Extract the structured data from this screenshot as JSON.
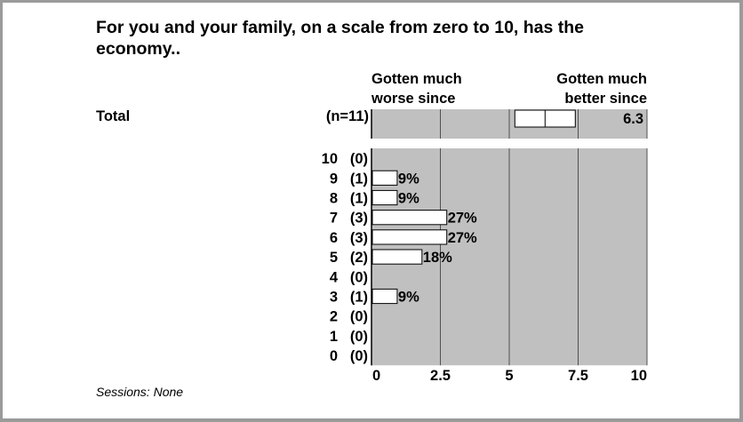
{
  "chart_data": {
    "type": "bar",
    "title": "For you and your family, on a scale from zero to 10, has the economy..",
    "left_anchor": "Gotten much worse since",
    "right_anchor": "Gotten much better since",
    "total": {
      "label": "Total",
      "n_label": "(n=11)",
      "mean": 6.3,
      "mean_label": "6.3"
    },
    "categories": [
      "10",
      "9",
      "8",
      "7",
      "6",
      "5",
      "4",
      "3",
      "2",
      "1",
      "0"
    ],
    "counts": [
      "(0)",
      "(1)",
      "(1)",
      "(3)",
      "(3)",
      "(2)",
      "(0)",
      "(1)",
      "(0)",
      "(0)",
      "(0)"
    ],
    "values": [
      0,
      9,
      9,
      27,
      27,
      18,
      0,
      9,
      0,
      0,
      0
    ],
    "value_labels": [
      "",
      "9%",
      "9%",
      "27%",
      "27%",
      "18%",
      "",
      "9%",
      "",
      "",
      ""
    ],
    "x_ticks": [
      "0",
      "2.5",
      "5",
      "7.5",
      "10"
    ],
    "xlim": [
      0,
      10
    ],
    "grid": true,
    "plot_bg": "#c0c0c0",
    "bar_color": "#ffffff"
  },
  "footer": {
    "sessions": "Sessions: None"
  }
}
